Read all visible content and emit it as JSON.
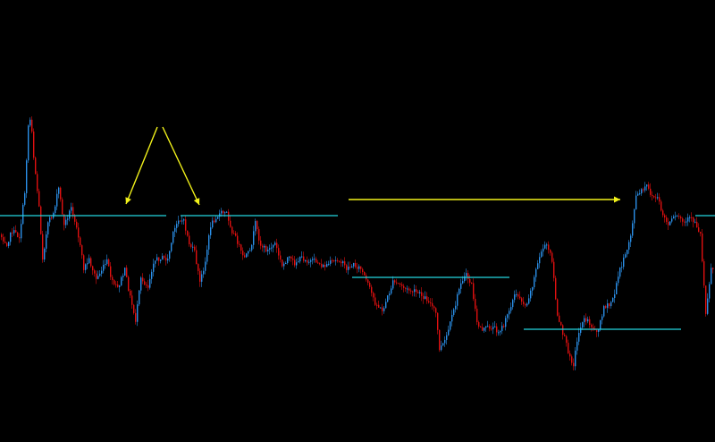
{
  "chart_data": {
    "type": "candlestick",
    "title": "",
    "xlabel": "",
    "ylabel": "",
    "grid": false,
    "legend": "none",
    "ylim": [
      0,
      494
    ],
    "colors": {
      "background": "#000000",
      "up_candle": "#2b8fe8",
      "down_candle": "#e01010",
      "level_line": "#24d6e0",
      "annotation": "#f2f21a"
    },
    "price_path": [
      [
        0,
        262
      ],
      [
        8,
        272
      ],
      [
        14,
        258
      ],
      [
        22,
        265
      ],
      [
        28,
        215
      ],
      [
        32,
        140
      ],
      [
        35,
        130
      ],
      [
        38,
        175
      ],
      [
        44,
        232
      ],
      [
        48,
        288
      ],
      [
        54,
        250
      ],
      [
        60,
        238
      ],
      [
        66,
        210
      ],
      [
        72,
        252
      ],
      [
        80,
        232
      ],
      [
        86,
        252
      ],
      [
        94,
        300
      ],
      [
        100,
        290
      ],
      [
        108,
        312
      ],
      [
        114,
        302
      ],
      [
        120,
        292
      ],
      [
        126,
        316
      ],
      [
        132,
        322
      ],
      [
        140,
        302
      ],
      [
        146,
        332
      ],
      [
        152,
        358
      ],
      [
        158,
        312
      ],
      [
        166,
        320
      ],
      [
        172,
        292
      ],
      [
        180,
        288
      ],
      [
        188,
        290
      ],
      [
        194,
        262
      ],
      [
        200,
        244
      ],
      [
        206,
        248
      ],
      [
        212,
        272
      ],
      [
        218,
        282
      ],
      [
        224,
        316
      ],
      [
        230,
        292
      ],
      [
        236,
        252
      ],
      [
        242,
        242
      ],
      [
        248,
        238
      ],
      [
        254,
        238
      ],
      [
        260,
        258
      ],
      [
        266,
        270
      ],
      [
        272,
        288
      ],
      [
        280,
        282
      ],
      [
        286,
        250
      ],
      [
        292,
        274
      ],
      [
        300,
        280
      ],
      [
        308,
        272
      ],
      [
        316,
        298
      ],
      [
        322,
        288
      ],
      [
        330,
        294
      ],
      [
        338,
        288
      ],
      [
        346,
        292
      ],
      [
        354,
        292
      ],
      [
        362,
        298
      ],
      [
        370,
        294
      ],
      [
        380,
        290
      ],
      [
        388,
        300
      ],
      [
        396,
        296
      ],
      [
        404,
        300
      ],
      [
        412,
        318
      ],
      [
        420,
        338
      ],
      [
        428,
        348
      ],
      [
        434,
        332
      ],
      [
        440,
        316
      ],
      [
        448,
        318
      ],
      [
        456,
        324
      ],
      [
        464,
        326
      ],
      [
        472,
        330
      ],
      [
        480,
        336
      ],
      [
        488,
        350
      ],
      [
        492,
        390
      ],
      [
        498,
        382
      ],
      [
        504,
        362
      ],
      [
        510,
        340
      ],
      [
        516,
        314
      ],
      [
        522,
        308
      ],
      [
        528,
        318
      ],
      [
        534,
        362
      ],
      [
        540,
        368
      ],
      [
        546,
        366
      ],
      [
        552,
        366
      ],
      [
        558,
        370
      ],
      [
        564,
        364
      ],
      [
        570,
        346
      ],
      [
        576,
        330
      ],
      [
        582,
        332
      ],
      [
        588,
        342
      ],
      [
        594,
        326
      ],
      [
        600,
        302
      ],
      [
        606,
        280
      ],
      [
        612,
        274
      ],
      [
        618,
        290
      ],
      [
        624,
        355
      ],
      [
        630,
        372
      ],
      [
        636,
        392
      ],
      [
        642,
        408
      ],
      [
        646,
        380
      ],
      [
        652,
        358
      ],
      [
        658,
        358
      ],
      [
        664,
        368
      ],
      [
        670,
        368
      ],
      [
        676,
        342
      ],
      [
        682,
        342
      ],
      [
        688,
        328
      ],
      [
        694,
        300
      ],
      [
        700,
        286
      ],
      [
        706,
        262
      ],
      [
        712,
        220
      ],
      [
        718,
        214
      ],
      [
        724,
        208
      ],
      [
        730,
        220
      ],
      [
        736,
        222
      ],
      [
        742,
        240
      ],
      [
        748,
        252
      ],
      [
        754,
        244
      ],
      [
        760,
        242
      ],
      [
        766,
        250
      ],
      [
        772,
        244
      ],
      [
        778,
        248
      ],
      [
        784,
        262
      ],
      [
        790,
        348
      ],
      [
        796,
        300
      ]
    ],
    "levels": [
      {
        "y": 241,
        "x1": 0,
        "x2": 186
      },
      {
        "y": 241,
        "x1": 202,
        "x2": 378
      },
      {
        "y": 310,
        "x1": 394,
        "x2": 570
      },
      {
        "y": 368,
        "x1": 586,
        "x2": 762
      },
      {
        "y": 241,
        "x1": 778,
        "x2": 800
      }
    ],
    "annotations": [
      {
        "type": "arrow",
        "x1": 176,
        "y1": 142,
        "x2": 141,
        "y2": 228
      },
      {
        "type": "arrow",
        "x1": 182,
        "y1": 142,
        "x2": 223,
        "y2": 229
      },
      {
        "type": "arrow",
        "x1": 390,
        "y1": 223,
        "x2": 694,
        "y2": 223
      }
    ]
  }
}
